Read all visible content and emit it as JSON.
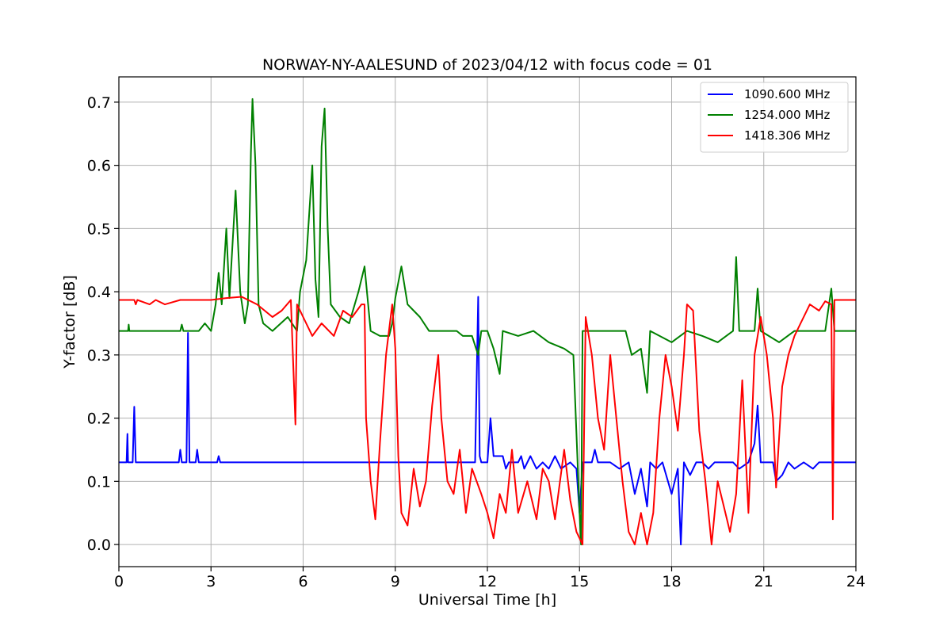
{
  "chart_data": {
    "type": "line",
    "title": "NORWAY-NY-AALESUND of 2023/04/12 with focus code = 01",
    "xlabel": "Universal Time [h]",
    "ylabel": "Y-factor [dB]",
    "xlim": [
      0,
      24
    ],
    "ylim": [
      -0.035,
      0.74
    ],
    "xticks": [
      0,
      3,
      6,
      9,
      12,
      15,
      18,
      21,
      24
    ],
    "yticks": [
      0.0,
      0.1,
      0.2,
      0.3,
      0.4,
      0.5,
      0.6,
      0.7
    ],
    "ytick_labels": [
      "0.0",
      "0.1",
      "0.2",
      "0.3",
      "0.4",
      "0.5",
      "0.6",
      "0.7"
    ],
    "grid": true,
    "legend_position": "top-right",
    "series": [
      {
        "name": "1090.600 MHz",
        "color": "#0000ff",
        "baseline": 0.13,
        "points": [
          [
            0,
            0.13
          ],
          [
            0.25,
            0.13
          ],
          [
            0.28,
            0.175
          ],
          [
            0.3,
            0.13
          ],
          [
            0.45,
            0.13
          ],
          [
            0.5,
            0.218
          ],
          [
            0.55,
            0.13
          ],
          [
            1.95,
            0.13
          ],
          [
            2.0,
            0.15
          ],
          [
            2.05,
            0.13
          ],
          [
            2.2,
            0.13
          ],
          [
            2.25,
            0.335
          ],
          [
            2.3,
            0.13
          ],
          [
            2.5,
            0.13
          ],
          [
            2.55,
            0.15
          ],
          [
            2.6,
            0.13
          ],
          [
            3.2,
            0.13
          ],
          [
            3.25,
            0.14
          ],
          [
            3.3,
            0.13
          ],
          [
            11.6,
            0.13
          ],
          [
            11.7,
            0.392
          ],
          [
            11.75,
            0.14
          ],
          [
            11.8,
            0.13
          ],
          [
            12.0,
            0.13
          ],
          [
            12.1,
            0.2
          ],
          [
            12.2,
            0.14
          ],
          [
            12.5,
            0.14
          ],
          [
            12.6,
            0.12
          ],
          [
            12.7,
            0.13
          ],
          [
            13.0,
            0.13
          ],
          [
            13.1,
            0.14
          ],
          [
            13.2,
            0.12
          ],
          [
            13.4,
            0.14
          ],
          [
            13.6,
            0.12
          ],
          [
            13.8,
            0.13
          ],
          [
            14.0,
            0.12
          ],
          [
            14.2,
            0.14
          ],
          [
            14.4,
            0.12
          ],
          [
            14.7,
            0.13
          ],
          [
            14.9,
            0.12
          ],
          [
            15.0,
            0.05
          ],
          [
            15.1,
            0.13
          ],
          [
            15.4,
            0.13
          ],
          [
            15.5,
            0.15
          ],
          [
            15.6,
            0.13
          ],
          [
            16.0,
            0.13
          ],
          [
            16.3,
            0.12
          ],
          [
            16.6,
            0.13
          ],
          [
            16.8,
            0.08
          ],
          [
            17.0,
            0.12
          ],
          [
            17.2,
            0.06
          ],
          [
            17.3,
            0.13
          ],
          [
            17.5,
            0.12
          ],
          [
            17.7,
            0.13
          ],
          [
            18.0,
            0.08
          ],
          [
            18.2,
            0.12
          ],
          [
            18.3,
            0.0
          ],
          [
            18.4,
            0.13
          ],
          [
            18.6,
            0.11
          ],
          [
            18.8,
            0.13
          ],
          [
            19.0,
            0.13
          ],
          [
            19.2,
            0.12
          ],
          [
            19.4,
            0.13
          ],
          [
            20.0,
            0.13
          ],
          [
            20.2,
            0.12
          ],
          [
            20.5,
            0.13
          ],
          [
            20.7,
            0.16
          ],
          [
            20.8,
            0.22
          ],
          [
            20.9,
            0.13
          ],
          [
            21.3,
            0.13
          ],
          [
            21.4,
            0.1
          ],
          [
            21.6,
            0.11
          ],
          [
            21.8,
            0.13
          ],
          [
            22.0,
            0.12
          ],
          [
            22.3,
            0.13
          ],
          [
            22.6,
            0.12
          ],
          [
            22.8,
            0.13
          ],
          [
            24,
            0.13
          ]
        ]
      },
      {
        "name": "1254.000 MHz",
        "color": "#008000",
        "baseline": 0.338,
        "points": [
          [
            0,
            0.338
          ],
          [
            0.3,
            0.338
          ],
          [
            0.32,
            0.348
          ],
          [
            0.34,
            0.338
          ],
          [
            2.0,
            0.338
          ],
          [
            2.05,
            0.348
          ],
          [
            2.1,
            0.338
          ],
          [
            2.6,
            0.338
          ],
          [
            2.8,
            0.35
          ],
          [
            3.0,
            0.338
          ],
          [
            3.15,
            0.38
          ],
          [
            3.25,
            0.43
          ],
          [
            3.35,
            0.38
          ],
          [
            3.5,
            0.5
          ],
          [
            3.6,
            0.39
          ],
          [
            3.8,
            0.56
          ],
          [
            3.95,
            0.4
          ],
          [
            4.1,
            0.35
          ],
          [
            4.2,
            0.38
          ],
          [
            4.3,
            0.62
          ],
          [
            4.35,
            0.705
          ],
          [
            4.45,
            0.6
          ],
          [
            4.55,
            0.38
          ],
          [
            4.7,
            0.35
          ],
          [
            5.0,
            0.338
          ],
          [
            5.5,
            0.36
          ],
          [
            5.8,
            0.338
          ],
          [
            5.9,
            0.4
          ],
          [
            6.1,
            0.45
          ],
          [
            6.3,
            0.6
          ],
          [
            6.4,
            0.42
          ],
          [
            6.5,
            0.36
          ],
          [
            6.6,
            0.63
          ],
          [
            6.7,
            0.69
          ],
          [
            6.8,
            0.5
          ],
          [
            6.9,
            0.38
          ],
          [
            7.2,
            0.36
          ],
          [
            7.5,
            0.35
          ],
          [
            7.8,
            0.4
          ],
          [
            8.0,
            0.44
          ],
          [
            8.2,
            0.338
          ],
          [
            8.5,
            0.33
          ],
          [
            8.8,
            0.33
          ],
          [
            8.9,
            0.35
          ],
          [
            9.0,
            0.39
          ],
          [
            9.2,
            0.44
          ],
          [
            9.4,
            0.38
          ],
          [
            9.6,
            0.37
          ],
          [
            9.8,
            0.36
          ],
          [
            10.1,
            0.338
          ],
          [
            11.0,
            0.338
          ],
          [
            11.2,
            0.33
          ],
          [
            11.5,
            0.33
          ],
          [
            11.7,
            0.3
          ],
          [
            11.8,
            0.338
          ],
          [
            12.0,
            0.338
          ],
          [
            12.2,
            0.31
          ],
          [
            12.4,
            0.27
          ],
          [
            12.5,
            0.338
          ],
          [
            13.0,
            0.33
          ],
          [
            13.5,
            0.338
          ],
          [
            14.0,
            0.32
          ],
          [
            14.5,
            0.31
          ],
          [
            14.8,
            0.3
          ],
          [
            15.0,
            0.05
          ],
          [
            15.05,
            0.0
          ],
          [
            15.1,
            0.338
          ],
          [
            16.0,
            0.338
          ],
          [
            16.5,
            0.338
          ],
          [
            16.7,
            0.3
          ],
          [
            17.0,
            0.31
          ],
          [
            17.2,
            0.24
          ],
          [
            17.3,
            0.338
          ],
          [
            18.0,
            0.32
          ],
          [
            18.5,
            0.338
          ],
          [
            19.0,
            0.33
          ],
          [
            19.5,
            0.32
          ],
          [
            20.0,
            0.338
          ],
          [
            20.1,
            0.455
          ],
          [
            20.2,
            0.338
          ],
          [
            20.7,
            0.338
          ],
          [
            20.8,
            0.405
          ],
          [
            20.9,
            0.338
          ],
          [
            21.5,
            0.32
          ],
          [
            22.0,
            0.338
          ],
          [
            23.0,
            0.338
          ],
          [
            23.2,
            0.405
          ],
          [
            23.3,
            0.338
          ],
          [
            24,
            0.338
          ]
        ]
      },
      {
        "name": "1418.306 MHz",
        "color": "#ff0000",
        "baseline": 0.387,
        "points": [
          [
            0,
            0.387
          ],
          [
            0.5,
            0.387
          ],
          [
            0.55,
            0.38
          ],
          [
            0.6,
            0.387
          ],
          [
            1.0,
            0.38
          ],
          [
            1.2,
            0.387
          ],
          [
            1.5,
            0.38
          ],
          [
            2.0,
            0.387
          ],
          [
            3.0,
            0.387
          ],
          [
            3.5,
            0.39
          ],
          [
            4.0,
            0.392
          ],
          [
            4.5,
            0.38
          ],
          [
            5.0,
            0.36
          ],
          [
            5.3,
            0.37
          ],
          [
            5.6,
            0.387
          ],
          [
            5.75,
            0.19
          ],
          [
            5.8,
            0.38
          ],
          [
            6.0,
            0.36
          ],
          [
            6.3,
            0.33
          ],
          [
            6.6,
            0.35
          ],
          [
            7.0,
            0.33
          ],
          [
            7.3,
            0.37
          ],
          [
            7.6,
            0.36
          ],
          [
            7.9,
            0.38
          ],
          [
            8.0,
            0.38
          ],
          [
            8.05,
            0.2
          ],
          [
            8.2,
            0.1
          ],
          [
            8.35,
            0.04
          ],
          [
            8.5,
            0.16
          ],
          [
            8.7,
            0.3
          ],
          [
            8.9,
            0.38
          ],
          [
            9.0,
            0.31
          ],
          [
            9.1,
            0.14
          ],
          [
            9.2,
            0.05
          ],
          [
            9.4,
            0.03
          ],
          [
            9.6,
            0.12
          ],
          [
            9.8,
            0.06
          ],
          [
            10.0,
            0.1
          ],
          [
            10.2,
            0.22
          ],
          [
            10.4,
            0.3
          ],
          [
            10.5,
            0.2
          ],
          [
            10.7,
            0.1
          ],
          [
            10.9,
            0.08
          ],
          [
            11.1,
            0.15
          ],
          [
            11.3,
            0.05
          ],
          [
            11.5,
            0.12
          ],
          [
            11.8,
            0.08
          ],
          [
            12.0,
            0.05
          ],
          [
            12.2,
            0.01
          ],
          [
            12.4,
            0.08
          ],
          [
            12.6,
            0.05
          ],
          [
            12.8,
            0.15
          ],
          [
            13.0,
            0.05
          ],
          [
            13.3,
            0.1
          ],
          [
            13.6,
            0.04
          ],
          [
            13.8,
            0.12
          ],
          [
            14.0,
            0.1
          ],
          [
            14.2,
            0.04
          ],
          [
            14.5,
            0.15
          ],
          [
            14.7,
            0.07
          ],
          [
            14.9,
            0.02
          ],
          [
            15.1,
            0.0
          ],
          [
            15.2,
            0.36
          ],
          [
            15.4,
            0.3
          ],
          [
            15.6,
            0.2
          ],
          [
            15.8,
            0.15
          ],
          [
            16.0,
            0.3
          ],
          [
            16.2,
            0.2
          ],
          [
            16.4,
            0.1
          ],
          [
            16.6,
            0.02
          ],
          [
            16.8,
            0.0
          ],
          [
            17.0,
            0.05
          ],
          [
            17.2,
            0.0
          ],
          [
            17.4,
            0.05
          ],
          [
            17.6,
            0.2
          ],
          [
            17.8,
            0.3
          ],
          [
            18.0,
            0.25
          ],
          [
            18.2,
            0.18
          ],
          [
            18.4,
            0.3
          ],
          [
            18.5,
            0.38
          ],
          [
            18.7,
            0.37
          ],
          [
            18.9,
            0.18
          ],
          [
            19.1,
            0.1
          ],
          [
            19.3,
            0.0
          ],
          [
            19.5,
            0.1
          ],
          [
            19.7,
            0.06
          ],
          [
            19.9,
            0.02
          ],
          [
            20.1,
            0.08
          ],
          [
            20.3,
            0.26
          ],
          [
            20.5,
            0.05
          ],
          [
            20.7,
            0.3
          ],
          [
            20.9,
            0.36
          ],
          [
            21.1,
            0.3
          ],
          [
            21.3,
            0.2
          ],
          [
            21.4,
            0.09
          ],
          [
            21.6,
            0.25
          ],
          [
            21.8,
            0.3
          ],
          [
            22.0,
            0.33
          ],
          [
            22.2,
            0.35
          ],
          [
            22.5,
            0.38
          ],
          [
            22.8,
            0.37
          ],
          [
            23.0,
            0.385
          ],
          [
            23.2,
            0.38
          ],
          [
            23.25,
            0.04
          ],
          [
            23.3,
            0.387
          ],
          [
            24,
            0.387
          ]
        ]
      }
    ]
  }
}
